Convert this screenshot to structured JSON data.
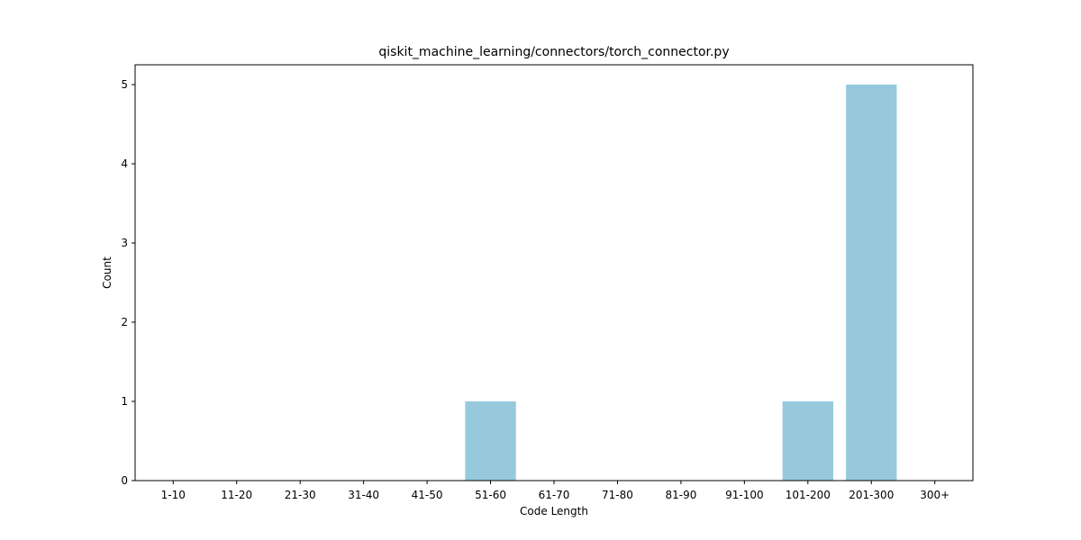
{
  "chart_data": {
    "type": "bar",
    "title": "qiskit_machine_learning/connectors/torch_connector.py",
    "xlabel": "Code Length",
    "ylabel": "Count",
    "categories": [
      "1-10",
      "11-20",
      "21-30",
      "31-40",
      "41-50",
      "51-60",
      "61-70",
      "71-80",
      "81-90",
      "91-100",
      "101-200",
      "201-300",
      "300+"
    ],
    "values": [
      0,
      0,
      0,
      0,
      0,
      1,
      0,
      0,
      0,
      0,
      1,
      5,
      0
    ],
    "ylim": [
      0,
      5.25
    ],
    "yticks": [
      0,
      1,
      2,
      3,
      4,
      5
    ],
    "grid": false,
    "legend": "none",
    "bar_color": "#96c9dc"
  }
}
